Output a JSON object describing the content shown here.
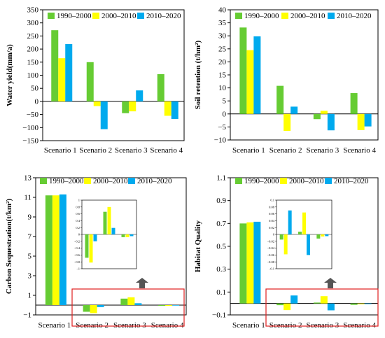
{
  "series_names": [
    "1990–2000",
    "2000–2010",
    "2010–2020"
  ],
  "series_colors": [
    "#66cc33",
    "#ffff00",
    "#00aaee"
  ],
  "categories": [
    "Scenario 1",
    "Scenario 2",
    "Scenario 3",
    "Scenario 4"
  ],
  "chart_data": [
    {
      "type": "bar",
      "ylabel": "Water yield(mm/a)",
      "ylim": [
        -150,
        350
      ],
      "yticks": [
        -150,
        -100,
        -50,
        0,
        50,
        100,
        150,
        200,
        250,
        300,
        350
      ],
      "tick_labels": [
        "−150",
        "−100",
        "−50",
        "0",
        "50",
        "100",
        "150",
        "200",
        "250",
        "300",
        "350"
      ],
      "series": [
        {
          "name": "1990–2000",
          "values": [
            272,
            150,
            -45,
            104
          ]
        },
        {
          "name": "2000–2010",
          "values": [
            165,
            -18,
            -38,
            -55
          ]
        },
        {
          "name": "2010–2020",
          "values": [
            219,
            -106,
            42,
            -67
          ]
        }
      ]
    },
    {
      "type": "bar",
      "ylabel": "Soil retention (t/hm²)",
      "ylim": [
        -10,
        40
      ],
      "yticks": [
        -10,
        -5,
        0,
        5,
        10,
        15,
        20,
        25,
        30,
        35,
        40
      ],
      "tick_labels": [
        "−10",
        "−5",
        "0",
        "5",
        "10",
        "15",
        "20",
        "25",
        "30",
        "35",
        "40"
      ],
      "series": [
        {
          "name": "1990–2000",
          "values": [
            33.2,
            10.8,
            -2,
            8
          ]
        },
        {
          "name": "2000–2010",
          "values": [
            24.5,
            -6.5,
            1.2,
            -6.2
          ]
        },
        {
          "name": "2010–2020",
          "values": [
            29.8,
            2.8,
            -6.3,
            -4.8
          ]
        }
      ]
    },
    {
      "type": "bar",
      "ylabel": "Carbon Sequestration(t/km²)",
      "ylim": [
        -1,
        13
      ],
      "yticks": [
        -1,
        1,
        3,
        5,
        7,
        9,
        11,
        13
      ],
      "tick_labels": [
        "−1",
        "1",
        "3",
        "5",
        "7",
        "9",
        "11",
        "13"
      ],
      "series": [
        {
          "name": "1990–2000",
          "values": [
            11.2,
            -0.68,
            0.66,
            -0.08
          ]
        },
        {
          "name": "2000–2010",
          "values": [
            11.2,
            -0.82,
            0.8,
            -0.08
          ]
        },
        {
          "name": "2010–2020",
          "values": [
            11.3,
            -0.2,
            0.19,
            -0.05
          ]
        }
      ],
      "inset": {
        "ylim": [
          -1,
          1
        ],
        "yticks": [
          -1,
          -0.8,
          -0.6,
          -0.4,
          -0.2,
          0,
          0.2,
          0.4,
          0.6,
          0.8,
          1
        ],
        "tick_labels": [
          "−1",
          "−0.8",
          "−0.6",
          "−0.4",
          "−0.2",
          "0",
          "0.2",
          "0.4",
          "0.6",
          "0.8",
          "1"
        ],
        "series": [
          {
            "name": "1990–2000",
            "values": [
              -0.68,
              0.66,
              -0.08
            ]
          },
          {
            "name": "2000–2010",
            "values": [
              -0.82,
              0.8,
              -0.08
            ]
          },
          {
            "name": "2010–2020",
            "values": [
              -0.2,
              0.19,
              -0.05
            ]
          }
        ]
      }
    },
    {
      "type": "bar",
      "ylabel": "Habitat Quality",
      "ylim": [
        -0.1,
        1.1
      ],
      "yticks": [
        -0.1,
        0.1,
        0.3,
        0.5,
        0.7,
        0.9,
        1.1
      ],
      "tick_labels": [
        "−0.1",
        "0.1",
        "0.3",
        "0.5",
        "0.7",
        "0.9",
        "1.1"
      ],
      "series": [
        {
          "name": "1990–2000",
          "values": [
            0.7,
            -0.015,
            0.008,
            -0.012
          ]
        },
        {
          "name": "2000–2010",
          "values": [
            0.71,
            -0.058,
            0.064,
            -0.006
          ]
        },
        {
          "name": "2010–2020",
          "values": [
            0.715,
            0.07,
            -0.06,
            -0.005
          ]
        }
      ],
      "inset": {
        "ylim": [
          -0.1,
          0.1
        ],
        "yticks": [
          -0.1,
          -0.08,
          -0.06,
          -0.04,
          -0.02,
          0,
          0.02,
          0.04,
          0.06,
          0.08,
          0.1
        ],
        "tick_labels": [
          "−0.1",
          "−0.08",
          "−0.06",
          "−0.04",
          "−0.02",
          "0",
          "0.02",
          "0.04",
          "0.06",
          "0.08",
          "0.1"
        ],
        "series": [
          {
            "name": "1990–2000",
            "values": [
              -0.015,
              0.008,
              -0.012
            ]
          },
          {
            "name": "2000–2010",
            "values": [
              -0.058,
              0.064,
              -0.006
            ]
          },
          {
            "name": "2010–2020",
            "values": [
              0.07,
              -0.06,
              -0.005
            ]
          }
        ]
      }
    }
  ]
}
